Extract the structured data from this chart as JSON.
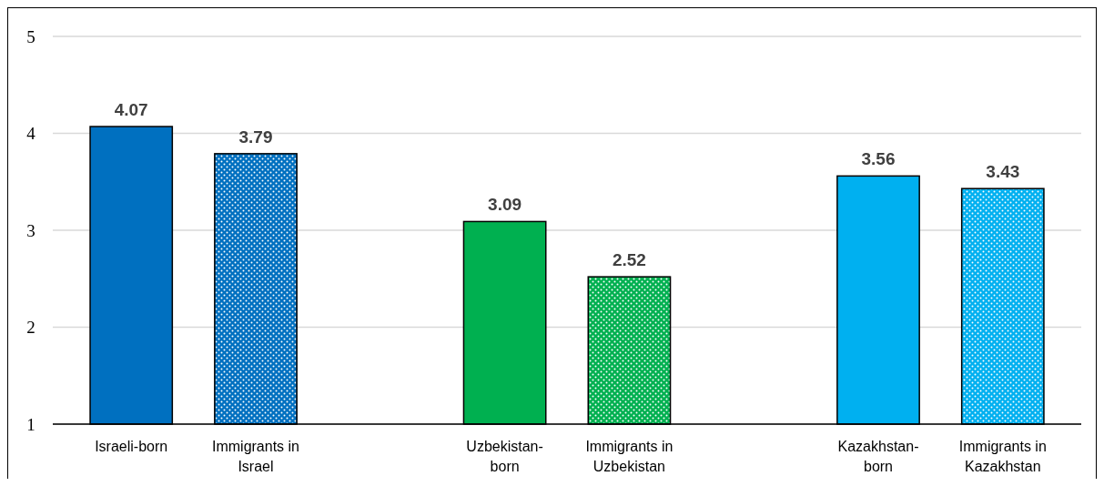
{
  "chart_data": {
    "type": "bar",
    "categories": [
      "Israeli-born",
      "Immigrants in Israel",
      null,
      "Uzbekistan-born",
      "Immigrants in Uzbekistan",
      null,
      "Kazakhstan-born",
      "Immigrants in Kazakhstan"
    ],
    "values": [
      4.07,
      3.79,
      null,
      3.09,
      2.52,
      null,
      3.56,
      3.43
    ],
    "colors": [
      "#0070c0",
      "#0070c0",
      null,
      "#00b050",
      "#00b050",
      null,
      "#00b0f0",
      "#00b0f0"
    ],
    "ylim": [
      1,
      5
    ],
    "yticks": [
      1,
      2,
      3,
      4,
      5
    ],
    "grid": "y",
    "data_labels": true
  }
}
